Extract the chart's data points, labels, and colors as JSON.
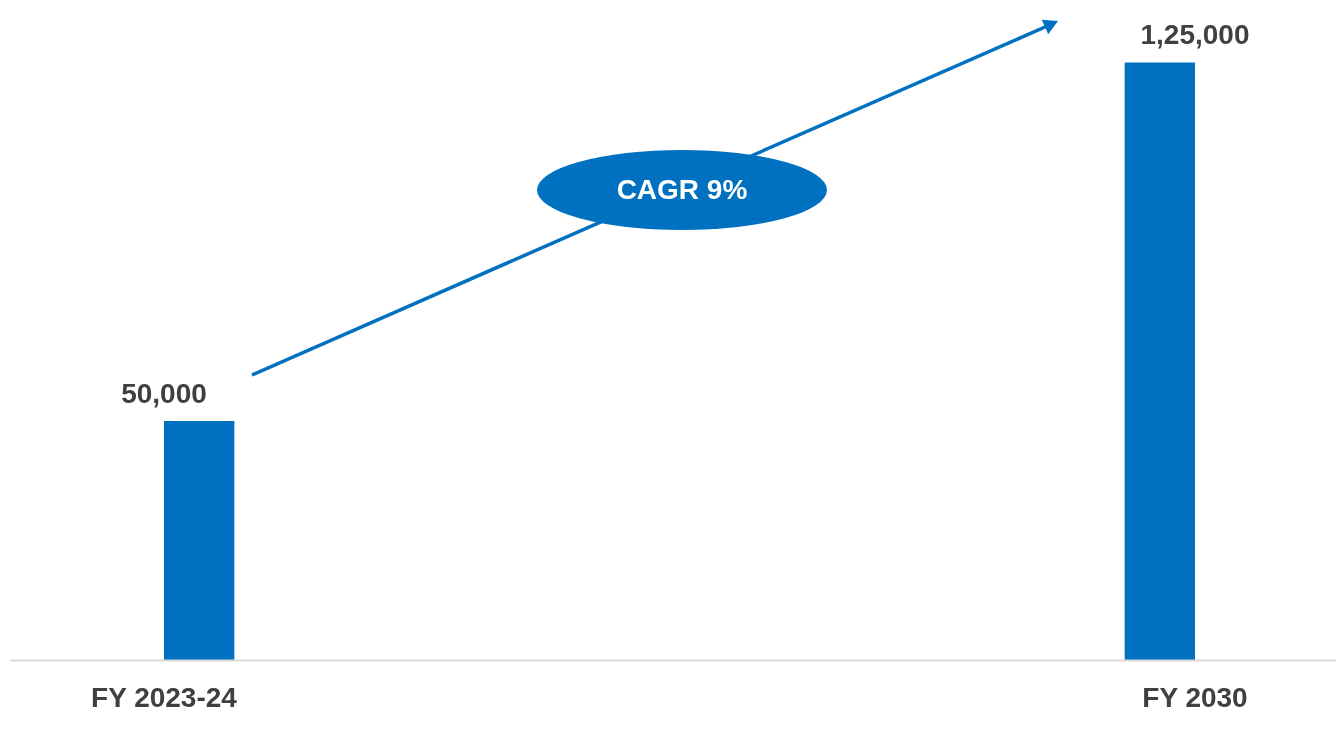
{
  "chart_data": {
    "type": "bar",
    "categories": [
      "FY 2023-24",
      "FY 2030"
    ],
    "values": [
      50000,
      125000
    ],
    "color": "#0070c0",
    "value_labels": [
      "50,000",
      "1,25,000"
    ],
    "annotations": [
      "CAGR 9%"
    ],
    "grid": false,
    "legend": false
  }
}
